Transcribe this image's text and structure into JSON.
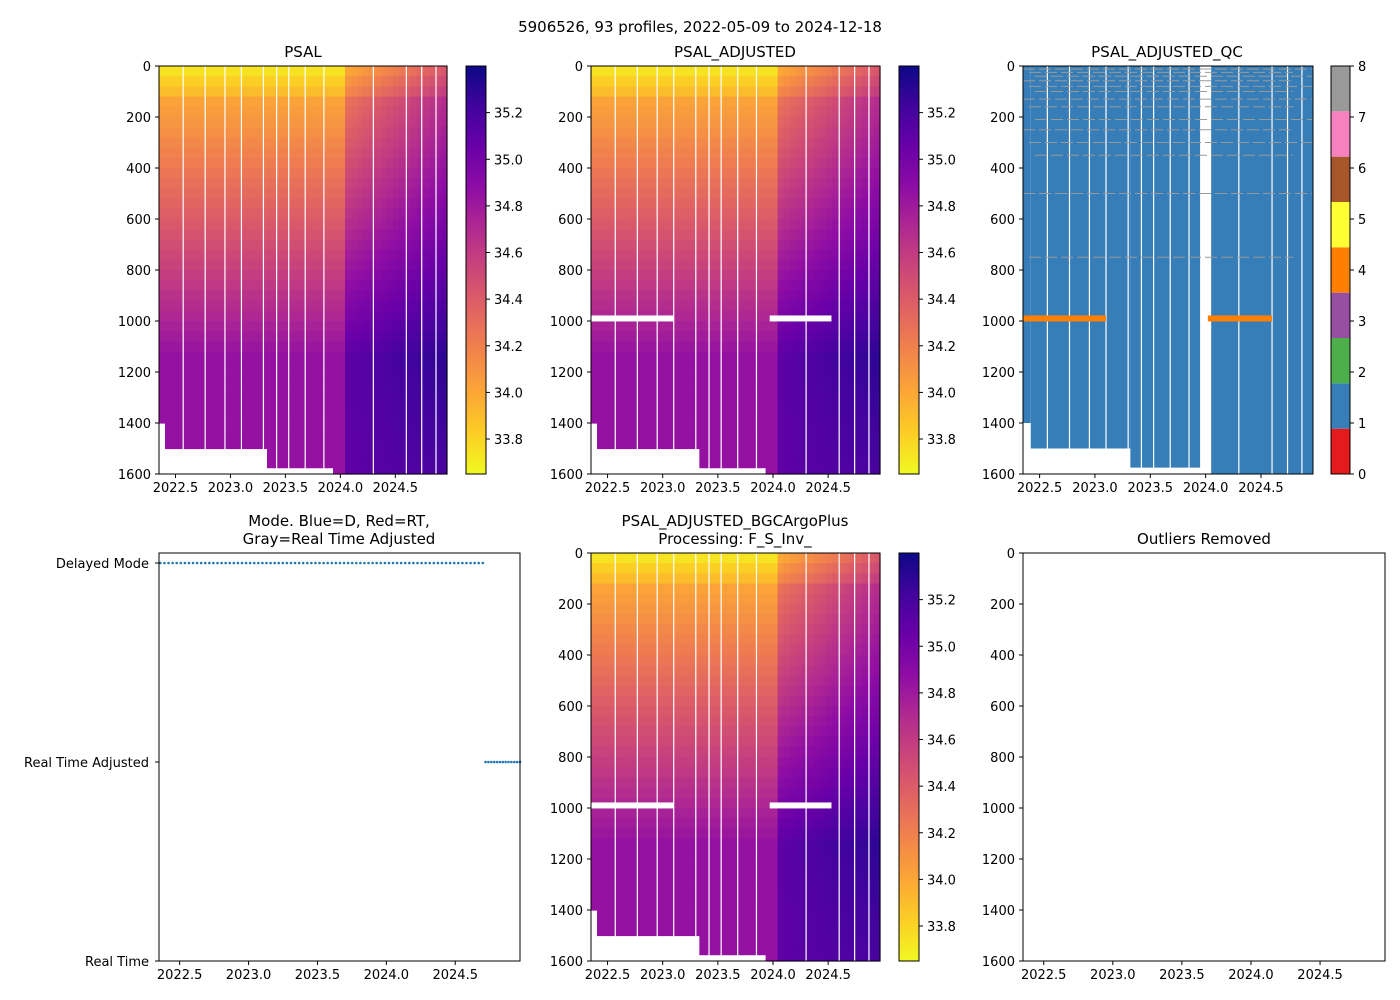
{
  "figure_title": "5906526, 93 profiles, 2022-05-09 to 2024-12-18",
  "panels": {
    "psal": {
      "title": "PSAL"
    },
    "psal_adjusted": {
      "title": "PSAL_ADJUSTED"
    },
    "psal_adjusted_qc": {
      "title": "PSAL_ADJUSTED_QC"
    },
    "mode": {
      "title_line1": "Mode. Blue=D, Red=RT,",
      "title_line2": "Gray=Real Time Adjusted"
    },
    "bgc": {
      "title_line1": "PSAL_ADJUSTED_BGCArgoPlus",
      "title_line2": "Processing: F_S_Inv_"
    },
    "outliers": {
      "title": "Outliers Removed"
    }
  },
  "chart_data": [
    {
      "id": "psal",
      "type": "heatmap",
      "title": "PSAL",
      "xlim": [
        2022.35,
        2024.97
      ],
      "ylim": [
        1600,
        0
      ],
      "xticks": [
        2022.5,
        2023.0,
        2023.5,
        2024.0,
        2024.5
      ],
      "xtick_labels": [
        "2022.5",
        "2023.0",
        "2023.5",
        "2024.0",
        "2024.5"
      ],
      "yticks": [
        0,
        200,
        400,
        600,
        800,
        1000,
        1200,
        1400,
        1600
      ],
      "ytick_labels": [
        "0",
        "200",
        "400",
        "600",
        "800",
        "1000",
        "1200",
        "1400",
        "1600"
      ],
      "colormap": "plasma_r",
      "colorbar": {
        "range": [
          33.65,
          35.4
        ],
        "ticks": [
          33.8,
          34.0,
          34.2,
          34.4,
          34.6,
          34.8,
          35.0,
          35.2
        ],
        "tick_labels": [
          "33.8",
          "34.0",
          "34.2",
          "34.4",
          "34.6",
          "34.8",
          "35.0",
          "35.2"
        ]
      },
      "profile_gaps": [
        2022.57,
        2022.77,
        2022.95,
        2023.1,
        2023.3,
        2023.42,
        2023.53,
        2023.68,
        2023.85,
        2024.3,
        2024.6,
        2024.74,
        2024.87
      ],
      "max_depth_segments": [
        {
          "x0": 2022.35,
          "x1": 2022.42,
          "depth": 1400
        },
        {
          "x0": 2022.42,
          "x1": 2023.32,
          "depth": 1500
        },
        {
          "x0": 2023.32,
          "x1": 2023.95,
          "depth": 1575
        },
        {
          "x0": 2024.05,
          "x1": 2024.97,
          "depth": 1600
        }
      ]
    },
    {
      "id": "psal_adjusted",
      "type": "heatmap",
      "title": "PSAL_ADJUSTED",
      "xlim": [
        2022.35,
        2024.97
      ],
      "ylim": [
        1600,
        0
      ],
      "xticks": [
        2022.5,
        2023.0,
        2023.5,
        2024.0,
        2024.5
      ],
      "xtick_labels": [
        "2022.5",
        "2023.0",
        "2023.5",
        "2024.0",
        "2024.5"
      ],
      "yticks": [
        0,
        200,
        400,
        600,
        800,
        1000,
        1200,
        1400,
        1600
      ],
      "ytick_labels": [
        "0",
        "200",
        "400",
        "600",
        "800",
        "1000",
        "1200",
        "1400",
        "1600"
      ],
      "colormap": "plasma_r",
      "colorbar": {
        "range": [
          33.65,
          35.4
        ],
        "ticks": [
          33.8,
          34.0,
          34.2,
          34.4,
          34.6,
          34.8,
          35.0,
          35.2
        ],
        "tick_labels": [
          "33.8",
          "34.0",
          "34.2",
          "34.4",
          "34.6",
          "34.8",
          "35.0",
          "35.2"
        ]
      },
      "missing_band_depth": 990,
      "missing_band_ranges": [
        [
          2022.35,
          2023.1
        ],
        [
          2023.97,
          2024.53
        ]
      ]
    },
    {
      "id": "psal_adjusted_qc",
      "type": "heatmap",
      "title": "PSAL_ADJUSTED_QC",
      "xlim": [
        2022.35,
        2024.97
      ],
      "ylim": [
        1600,
        0
      ],
      "xticks": [
        2022.5,
        2023.0,
        2023.5,
        2024.0,
        2024.5
      ],
      "xtick_labels": [
        "2022.5",
        "2023.0",
        "2023.5",
        "2024.0",
        "2024.5"
      ],
      "yticks": [
        0,
        200,
        400,
        600,
        800,
        1000,
        1200,
        1400,
        1600
      ],
      "ytick_labels": [
        "0",
        "200",
        "400",
        "600",
        "800",
        "1000",
        "1200",
        "1400",
        "1600"
      ],
      "dominant_flag": 1,
      "flag4_band_depth": 990,
      "flag4_band_ranges": [
        [
          2022.35,
          2023.1
        ],
        [
          2024.02,
          2024.6
        ]
      ],
      "colorbar": {
        "range": [
          0,
          8
        ],
        "ticks": [
          0,
          1,
          2,
          3,
          4,
          5,
          6,
          7,
          8
        ],
        "tick_labels": [
          "0",
          "1",
          "2",
          "3",
          "4",
          "5",
          "6",
          "7",
          "8"
        ],
        "flag_colors": [
          "#e41a1c",
          "#377eb8",
          "#4daf4a",
          "#984ea3",
          "#ff7f00",
          "#ffff33",
          "#a65628",
          "#f781bf",
          "#999999"
        ]
      }
    },
    {
      "id": "mode",
      "type": "scatter",
      "title": "Mode. Blue=D, Red=RT, Gray=Real Time Adjusted",
      "xlim": [
        2022.35,
        2024.97
      ],
      "xticks": [
        2022.5,
        2023.0,
        2023.5,
        2024.0,
        2024.5
      ],
      "xtick_labels": [
        "2022.5",
        "2023.0",
        "2023.5",
        "2024.0",
        "2024.5"
      ],
      "ytick_labels": [
        "Delayed Mode",
        "Real Time Adjusted",
        "Real Time"
      ],
      "series": [
        {
          "name": "Delayed Mode",
          "level": 2,
          "x_start": 2022.36,
          "x_end": 2024.7,
          "count": 80,
          "color": "#1f77b4"
        },
        {
          "name": "Real Time Adjusted",
          "level": 1,
          "x_start": 2024.72,
          "x_end": 2024.97,
          "count": 13,
          "color": "#1f77b4"
        }
      ]
    },
    {
      "id": "bgc",
      "type": "heatmap",
      "title": "PSAL_ADJUSTED_BGCArgoPlus Processing: F_S_Inv_",
      "xlim": [
        2022.35,
        2024.97
      ],
      "ylim": [
        1600,
        0
      ],
      "xticks": [
        2022.5,
        2023.0,
        2023.5,
        2024.0,
        2024.5
      ],
      "xtick_labels": [
        "2022.5",
        "2023.0",
        "2023.5",
        "2024.0",
        "2024.5"
      ],
      "yticks": [
        0,
        200,
        400,
        600,
        800,
        1000,
        1200,
        1400,
        1600
      ],
      "ytick_labels": [
        "0",
        "200",
        "400",
        "600",
        "800",
        "1000",
        "1200",
        "1400",
        "1600"
      ],
      "colormap": "plasma_r",
      "colorbar": {
        "range": [
          33.65,
          35.4
        ],
        "ticks": [
          33.8,
          34.0,
          34.2,
          34.4,
          34.6,
          34.8,
          35.0,
          35.2
        ],
        "tick_labels": [
          "33.8",
          "34.0",
          "34.2",
          "34.4",
          "34.6",
          "34.8",
          "35.0",
          "35.2"
        ]
      }
    },
    {
      "id": "outliers",
      "type": "scatter",
      "title": "Outliers Removed",
      "xlim": [
        2022.35,
        2024.97
      ],
      "ylim": [
        1600,
        0
      ],
      "xticks": [
        2022.5,
        2023.0,
        2023.5,
        2024.0,
        2024.5
      ],
      "xtick_labels": [
        "2022.5",
        "2023.0",
        "2023.5",
        "2024.0",
        "2024.5"
      ],
      "yticks": [
        0,
        200,
        400,
        600,
        800,
        1000,
        1200,
        1400,
        1600
      ],
      "ytick_labels": [
        "0",
        "200",
        "400",
        "600",
        "800",
        "1000",
        "1200",
        "1400",
        "1600"
      ],
      "values": []
    }
  ]
}
